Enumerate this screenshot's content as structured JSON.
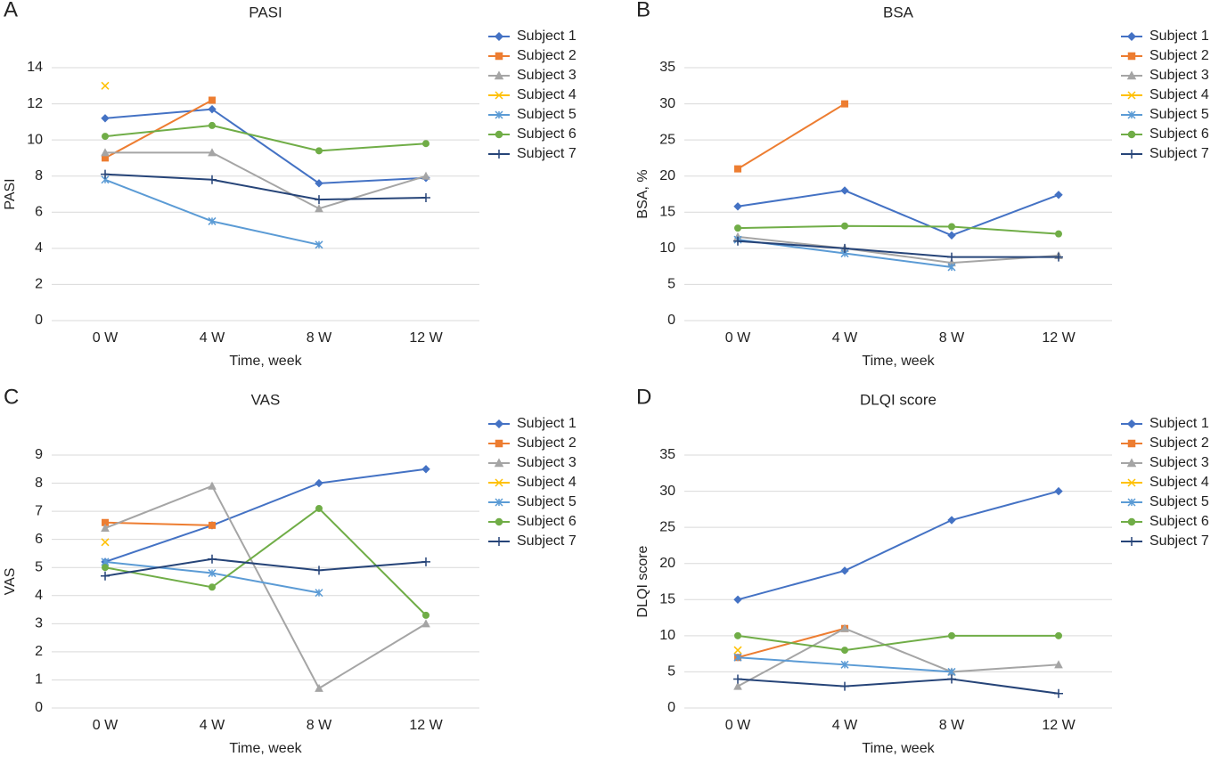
{
  "chart_data": [
    {
      "type": "line",
      "panel_label": "A",
      "title": "PASI",
      "y_label": "PASI",
      "x_label": "Time, week",
      "categories": [
        "0 W",
        "4 W",
        "8 W",
        "12 W"
      ],
      "ylim": [
        0,
        14
      ],
      "yticks": [
        0,
        2,
        4,
        6,
        8,
        10,
        12,
        14
      ],
      "grid": true,
      "series": [
        {
          "name": "Subject 1",
          "color": "#4472c4",
          "marker": "diamond",
          "values": [
            11.2,
            11.7,
            7.6,
            7.9
          ]
        },
        {
          "name": "Subject 2",
          "color": "#ed7d31",
          "marker": "square",
          "values": [
            9.0,
            12.2,
            null,
            null
          ]
        },
        {
          "name": "Subject 3",
          "color": "#a5a5a5",
          "marker": "triangle",
          "values": [
            9.3,
            9.3,
            6.2,
            8.0
          ]
        },
        {
          "name": "Subject 4",
          "color": "#ffc000",
          "marker": "x",
          "values": [
            13.0,
            null,
            null,
            null
          ]
        },
        {
          "name": "Subject 5",
          "color": "#5b9bd5",
          "marker": "asterisk",
          "values": [
            7.8,
            5.5,
            4.2,
            null
          ]
        },
        {
          "name": "Subject 6",
          "color": "#70ad47",
          "marker": "circle",
          "values": [
            10.2,
            10.8,
            9.4,
            9.8
          ]
        },
        {
          "name": "Subject 7",
          "color": "#264478",
          "marker": "plus",
          "values": [
            8.1,
            7.8,
            6.7,
            6.8
          ]
        }
      ]
    },
    {
      "type": "line",
      "panel_label": "B",
      "title": "BSA",
      "y_label": "BSA, %",
      "x_label": "Time, week",
      "categories": [
        "0 W",
        "4 W",
        "8 W",
        "12 W"
      ],
      "ylim": [
        0,
        35
      ],
      "yticks": [
        0,
        5,
        10,
        15,
        20,
        25,
        30,
        35
      ],
      "grid": true,
      "series": [
        {
          "name": "Subject 1",
          "color": "#4472c4",
          "marker": "diamond",
          "values": [
            15.8,
            18.0,
            11.8,
            17.4
          ]
        },
        {
          "name": "Subject 2",
          "color": "#ed7d31",
          "marker": "square",
          "values": [
            21,
            30,
            null,
            null
          ]
        },
        {
          "name": "Subject 3",
          "color": "#a5a5a5",
          "marker": "triangle",
          "values": [
            11.6,
            10.0,
            8.0,
            9.0
          ]
        },
        {
          "name": "Subject 4",
          "color": "#ffc000",
          "marker": "x",
          "values": [
            null,
            null,
            null,
            null
          ]
        },
        {
          "name": "Subject 5",
          "color": "#5b9bd5",
          "marker": "asterisk",
          "values": [
            11.2,
            9.3,
            7.4,
            null
          ]
        },
        {
          "name": "Subject 6",
          "color": "#70ad47",
          "marker": "circle",
          "values": [
            12.8,
            13.1,
            13.0,
            12.0
          ]
        },
        {
          "name": "Subject 7",
          "color": "#264478",
          "marker": "plus",
          "values": [
            11.0,
            10.0,
            8.8,
            8.8
          ]
        }
      ]
    },
    {
      "type": "line",
      "panel_label": "C",
      "title": "VAS",
      "y_label": "VAS",
      "x_label": "Time, week",
      "categories": [
        "0 W",
        "4 W",
        "8 W",
        "12 W"
      ],
      "ylim": [
        0,
        9
      ],
      "yticks": [
        0,
        1,
        2,
        3,
        4,
        5,
        6,
        7,
        8,
        9
      ],
      "grid": true,
      "series": [
        {
          "name": "Subject 1",
          "color": "#4472c4",
          "marker": "diamond",
          "values": [
            5.2,
            6.5,
            8.0,
            8.5
          ]
        },
        {
          "name": "Subject 2",
          "color": "#ed7d31",
          "marker": "square",
          "values": [
            6.6,
            6.5,
            null,
            null
          ]
        },
        {
          "name": "Subject 3",
          "color": "#a5a5a5",
          "marker": "triangle",
          "values": [
            6.4,
            7.9,
            0.7,
            3.0
          ]
        },
        {
          "name": "Subject 4",
          "color": "#ffc000",
          "marker": "x",
          "values": [
            5.9,
            null,
            null,
            null
          ]
        },
        {
          "name": "Subject 5",
          "color": "#5b9bd5",
          "marker": "asterisk",
          "values": [
            5.2,
            4.8,
            4.1,
            null
          ]
        },
        {
          "name": "Subject 6",
          "color": "#70ad47",
          "marker": "circle",
          "values": [
            5.0,
            4.3,
            7.1,
            3.3
          ]
        },
        {
          "name": "Subject 7",
          "color": "#264478",
          "marker": "plus",
          "values": [
            4.7,
            5.3,
            4.9,
            5.2
          ]
        }
      ]
    },
    {
      "type": "line",
      "panel_label": "D",
      "title": "DLQI score",
      "y_label": "DLQI score",
      "x_label": "Time, week",
      "categories": [
        "0 W",
        "4 W",
        "8 W",
        "12 W"
      ],
      "ylim": [
        0,
        35
      ],
      "yticks": [
        0,
        5,
        10,
        15,
        20,
        25,
        30,
        35
      ],
      "grid": true,
      "series": [
        {
          "name": "Subject 1",
          "color": "#4472c4",
          "marker": "diamond",
          "values": [
            15,
            19,
            26,
            30
          ]
        },
        {
          "name": "Subject 2",
          "color": "#ed7d31",
          "marker": "square",
          "values": [
            7,
            11,
            null,
            null
          ]
        },
        {
          "name": "Subject 3",
          "color": "#a5a5a5",
          "marker": "triangle",
          "values": [
            3,
            11,
            5,
            6
          ]
        },
        {
          "name": "Subject 4",
          "color": "#ffc000",
          "marker": "x",
          "values": [
            8,
            null,
            null,
            null
          ]
        },
        {
          "name": "Subject 5",
          "color": "#5b9bd5",
          "marker": "asterisk",
          "values": [
            7,
            6,
            5,
            null
          ]
        },
        {
          "name": "Subject 6",
          "color": "#70ad47",
          "marker": "circle",
          "values": [
            10,
            8,
            10,
            10
          ]
        },
        {
          "name": "Subject 7",
          "color": "#264478",
          "marker": "plus",
          "values": [
            4,
            3,
            4,
            2
          ]
        }
      ]
    }
  ]
}
